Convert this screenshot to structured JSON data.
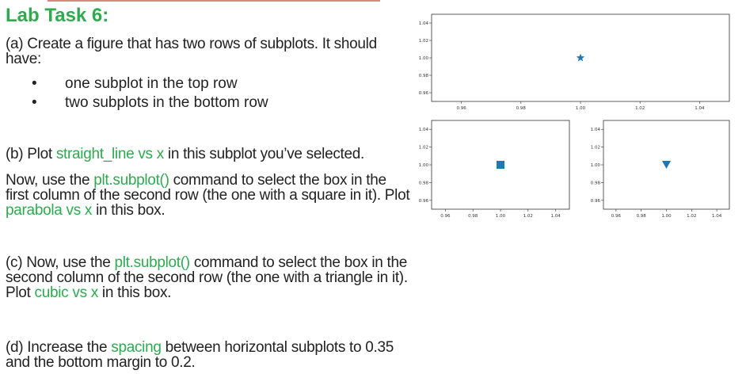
{
  "title": "Lab Task 6:",
  "part_a": {
    "line1": "(a) Create a figure that has two rows of subplots. It should",
    "line2": "have:",
    "bullets": [
      "one subplot in the top row",
      "two subplots in the bottom row"
    ]
  },
  "part_b": {
    "pre": "(b) Plot ",
    "code1": "straight_line vs x",
    "post": " in this subplot you’ve selected."
  },
  "part_now": {
    "l1_pre": "Now, use the ",
    "l1_code": "plt.subplot()",
    "l1_post": " command to select the box in the",
    "l2": "first column of the second row (the one with a square in it). Plot",
    "l3_code": "parabola vs x",
    "l3_post": " in this box."
  },
  "part_c": {
    "l1_pre": "(c) Now, use the ",
    "l1_code": "plt.subplot()",
    "l1_post": " command to select the box in the",
    "l2": "second column of the second row (the one with a triangle in it).",
    "l3_pre": "Plot ",
    "l3_code": "cubic vs x",
    "l3_post": " in this box."
  },
  "part_d": {
    "l1_pre": "(d) Increase the ",
    "l1_code": "spacing",
    "l1_post": " between horizontal subplots to 0.35",
    "l2": "and the bottom margin to 0.2."
  },
  "chart_data": [
    {
      "type": "scatter",
      "marker": "star",
      "x": [
        1.0
      ],
      "y": [
        1.0
      ],
      "xlim": [
        0.95,
        1.05
      ],
      "ylim": [
        0.95,
        1.05
      ],
      "xticks": [
        "0.96",
        "0.98",
        "1.00",
        "1.02",
        "1.04"
      ],
      "yticks": [
        "1.04",
        "1.02",
        "1.00",
        "0.98",
        "0.96"
      ],
      "color": "#1f77b4"
    },
    {
      "type": "scatter",
      "marker": "square",
      "x": [
        1.0
      ],
      "y": [
        1.0
      ],
      "xlim": [
        0.95,
        1.05
      ],
      "ylim": [
        0.95,
        1.05
      ],
      "xticks": [
        "0.96",
        "0.98",
        "1.00",
        "1.02",
        "1.04"
      ],
      "yticks": [
        "1.04",
        "1.02",
        "1.00",
        "0.98",
        "0.96"
      ],
      "color": "#1f77b4"
    },
    {
      "type": "scatter",
      "marker": "triangle-down",
      "x": [
        1.0
      ],
      "y": [
        1.0
      ],
      "xlim": [
        0.95,
        1.05
      ],
      "ylim": [
        0.95,
        1.05
      ],
      "xticks": [
        "0.96",
        "0.98",
        "1.00",
        "1.02",
        "1.04"
      ],
      "yticks": [
        "1.04",
        "1.02",
        "1.00",
        "0.98",
        "0.96"
      ],
      "color": "#1f77b4"
    }
  ]
}
